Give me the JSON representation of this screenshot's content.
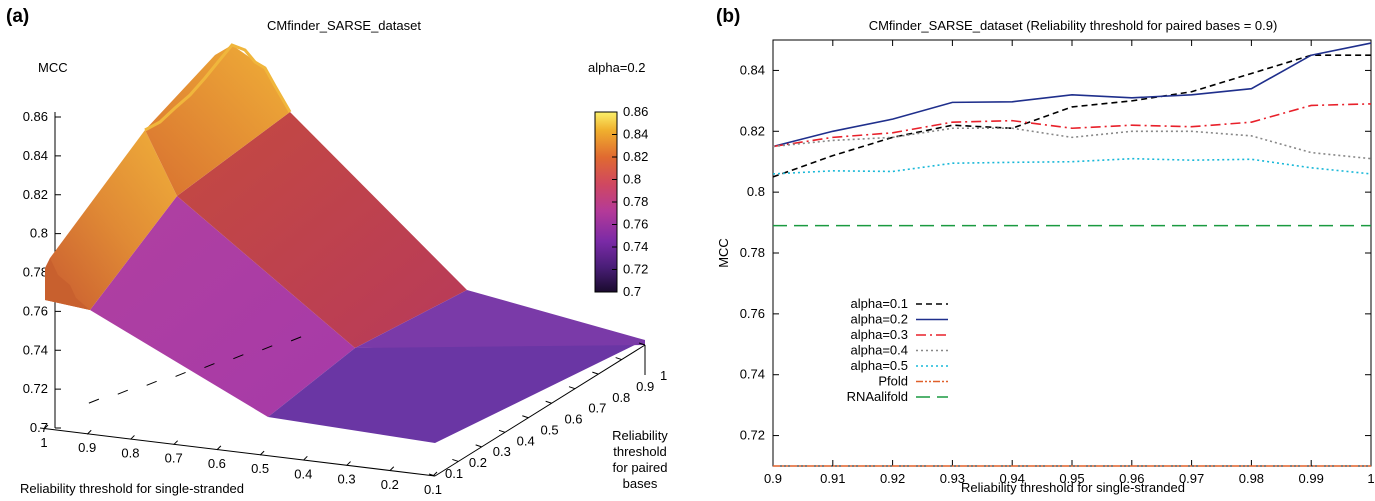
{
  "panel_a": {
    "letter_open": "(",
    "letter": "a",
    "letter_close": ")",
    "chart_data": {
      "type": "surface3d",
      "title": "CMfinder_SARSE_dataset",
      "zlabel": "MCC",
      "xlabel": "Reliability threshold for single-stranded",
      "ylabel_lines": [
        "Reliability",
        "threshold",
        "for paired",
        "bases"
      ],
      "series_label": "alpha=0.2",
      "zlim": [
        0.7,
        0.86
      ],
      "z_ticks": [
        "0.86",
        "0.84",
        "0.82",
        "0.8",
        "0.78",
        "0.76",
        "0.74",
        "0.72",
        "0.7"
      ],
      "x_ticks": [
        "1",
        "0.9",
        "0.8",
        "0.7",
        "0.6",
        "0.5",
        "0.4",
        "0.3",
        "0.2",
        "0.1"
      ],
      "y_ticks": [
        "0.1",
        "0.2",
        "0.3",
        "0.4",
        "0.5",
        "0.6",
        "0.7",
        "0.8",
        "0.9",
        "1"
      ],
      "colorbar_ticks": [
        "0.86",
        "0.84",
        "0.82",
        "0.8",
        "0.78",
        "0.76",
        "0.74",
        "0.72",
        "0.7"
      ],
      "colorbar_range": [
        0.7,
        0.86
      ],
      "colors": [
        "#1a0b2e",
        "#6a2a9a",
        "#a03aa8",
        "#c8446e",
        "#d85a32",
        "#eb9a28",
        "#f6d23a",
        "#fbf06a"
      ],
      "surface_corners": [
        {
          "x": 1,
          "y": 0.1,
          "z": 0.766
        },
        {
          "x": 1,
          "y": 0.9,
          "z": 0.86
        },
        {
          "x": 0.5,
          "y": 0.9,
          "z": 0.835
        },
        {
          "x": 0.1,
          "y": 0.9,
          "z": 0.748
        },
        {
          "x": 0.1,
          "y": 0.1,
          "z": 0.705
        },
        {
          "x": 0.5,
          "y": 0.1,
          "z": 0.733
        }
      ]
    }
  },
  "panel_b": {
    "letter_open": "(",
    "letter": "b",
    "letter_close": ")",
    "chart_data": {
      "type": "line",
      "title": "CMfinder_SARSE_dataset (Reliability threshold for paired bases = 0.9)",
      "xlabel": "Reliability threshold for single-stranded",
      "ylabel": "MCC",
      "xlim": [
        0.9,
        1.0
      ],
      "ylim": [
        0.71,
        0.85
      ],
      "x_ticks": [
        "0.9",
        "0.91",
        "0.92",
        "0.93",
        "0.94",
        "0.95",
        "0.96",
        "0.97",
        "0.98",
        "0.99",
        "1"
      ],
      "y_ticks": [
        "0.72",
        "0.74",
        "0.76",
        "0.78",
        "0.8",
        "0.82",
        "0.84"
      ],
      "x": [
        0.9,
        0.91,
        0.92,
        0.93,
        0.94,
        0.95,
        0.96,
        0.97,
        0.98,
        0.99,
        1.0
      ],
      "legend_position": "left",
      "series": [
        {
          "name": "alpha=0.1",
          "color": "#000000",
          "dash": "6,4",
          "values": [
            0.805,
            0.812,
            0.818,
            0.822,
            0.821,
            0.828,
            0.83,
            0.833,
            0.839,
            0.845,
            0.845
          ]
        },
        {
          "name": "alpha=0.2",
          "color": "#1f2f8c",
          "dash": "",
          "values": [
            0.815,
            0.82,
            0.824,
            0.8295,
            0.8297,
            0.832,
            0.831,
            0.832,
            0.834,
            0.845,
            0.849
          ]
        },
        {
          "name": "alpha=0.3",
          "color": "#e8202a",
          "dash": "10,4,2,4",
          "values": [
            0.815,
            0.818,
            0.8195,
            0.823,
            0.8235,
            0.821,
            0.822,
            0.8215,
            0.823,
            0.8285,
            0.829
          ]
        },
        {
          "name": "alpha=0.4",
          "color": "#888888",
          "dash": "2,3",
          "values": [
            0.815,
            0.817,
            0.818,
            0.821,
            0.821,
            0.818,
            0.82,
            0.82,
            0.8185,
            0.813,
            0.811
          ]
        },
        {
          "name": "alpha=0.5",
          "color": "#18b8d8",
          "dash": "2,3",
          "values": [
            0.806,
            0.807,
            0.8068,
            0.8095,
            0.8098,
            0.81,
            0.811,
            0.8105,
            0.8108,
            0.808,
            0.806
          ]
        },
        {
          "name": "Pfold",
          "color": "#e0602a",
          "dash": "7,2,2,2,2,2",
          "values": [
            0.71,
            0.71,
            0.71,
            0.71,
            0.71,
            0.71,
            0.71,
            0.71,
            0.71,
            0.71,
            0.71
          ]
        },
        {
          "name": "RNAalifold",
          "color": "#1a9a40",
          "dash": "14,7",
          "values": [
            0.789,
            0.789,
            0.789,
            0.789,
            0.789,
            0.789,
            0.789,
            0.789,
            0.789,
            0.789,
            0.789
          ]
        }
      ]
    }
  }
}
